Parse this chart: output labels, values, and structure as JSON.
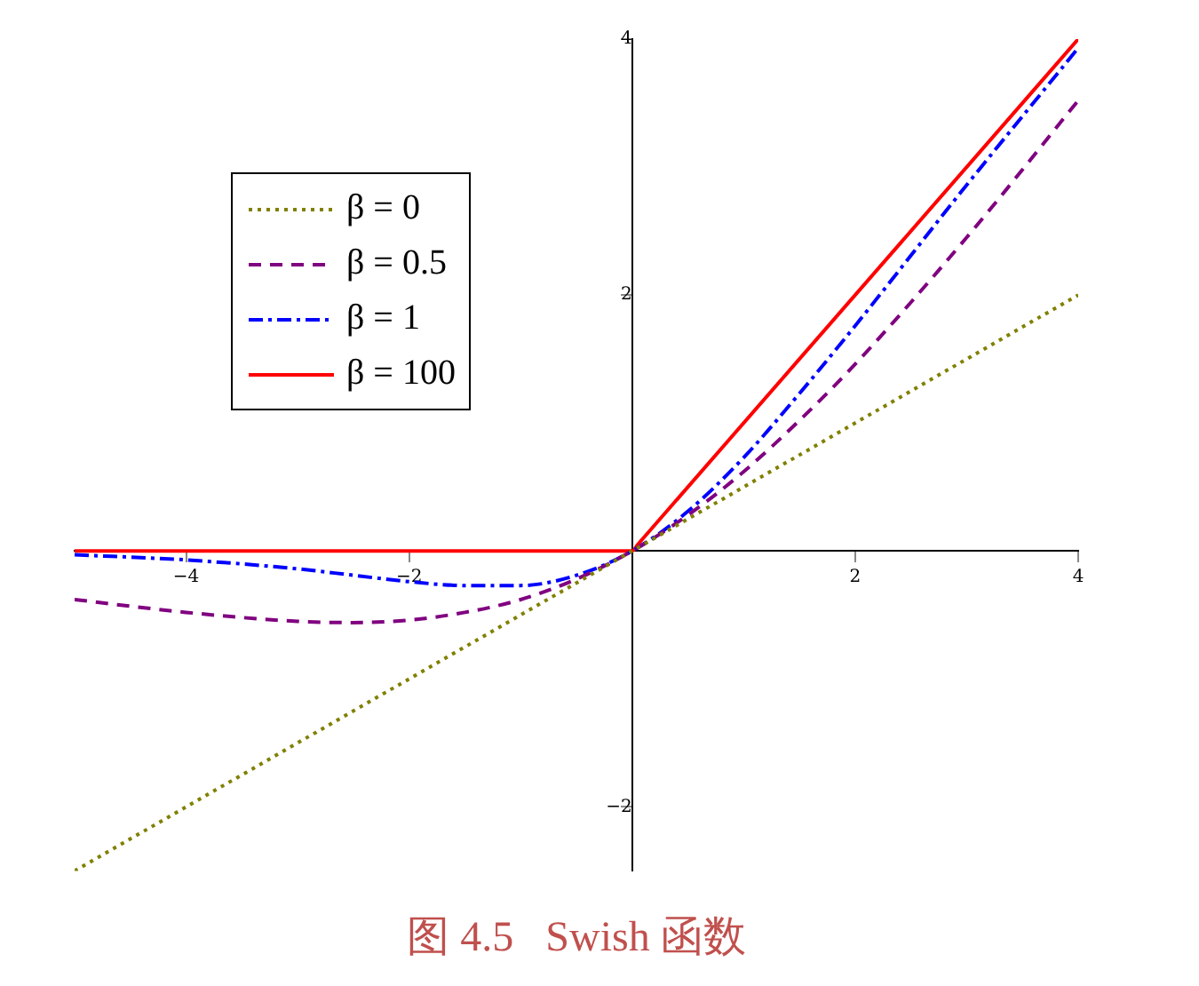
{
  "chart_data": {
    "type": "line",
    "title": "图 4.5   Swish 函数",
    "xlim": [
      -5,
      4
    ],
    "ylim": [
      -2.5,
      4
    ],
    "xticks": [
      -4,
      -2,
      2,
      4
    ],
    "yticks": [
      -2,
      2,
      4
    ],
    "grid": false,
    "legend": "top left",
    "marker": "none",
    "series": [
      {
        "name": "β = 0",
        "color": "#808000",
        "line_style": "dotted",
        "x": [
          -5,
          -4,
          -3,
          -2,
          -1,
          0,
          1,
          2,
          3,
          4
        ],
        "values": [
          -2.5,
          -2,
          -1.5,
          -1,
          -0.5,
          0,
          0.5,
          1,
          1.5,
          2
        ]
      },
      {
        "name": "β = 0.5",
        "color": "#800080",
        "line_style": "dashed",
        "x": [
          -5,
          -4,
          -3,
          -2.5,
          -2,
          -1.5,
          -1,
          -0.5,
          0,
          0.5,
          1,
          1.5,
          2,
          3,
          4
        ],
        "values": [
          -0.38,
          -0.48,
          -0.55,
          -0.56,
          -0.54,
          -0.48,
          -0.38,
          -0.22,
          0,
          0.28,
          0.62,
          1.02,
          1.46,
          2.45,
          3.52
        ]
      },
      {
        "name": "β = 1",
        "color": "#0000ff",
        "line_style": "dashdot",
        "x": [
          -5,
          -4,
          -3,
          -2.5,
          -2,
          -1.5,
          -1,
          -0.5,
          0,
          0.5,
          1,
          1.5,
          2,
          3,
          4
        ],
        "values": [
          -0.03,
          -0.07,
          -0.14,
          -0.19,
          -0.24,
          -0.27,
          -0.27,
          -0.19,
          0,
          0.31,
          0.73,
          1.23,
          1.76,
          2.86,
          3.93
        ]
      },
      {
        "name": "β = 100",
        "color": "#ff0000",
        "line_style": "solid",
        "x": [
          -5,
          -0.05,
          0,
          0.05,
          4
        ],
        "values": [
          0,
          0,
          0,
          0.05,
          4
        ]
      }
    ]
  }
}
